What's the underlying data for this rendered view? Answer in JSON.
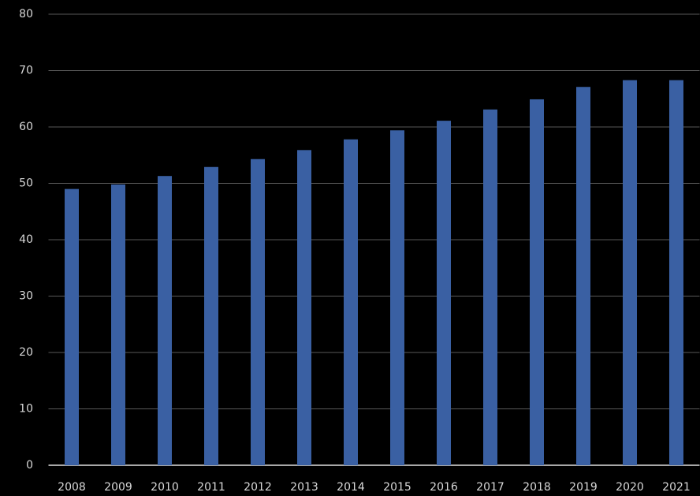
{
  "chart_data": {
    "type": "bar",
    "categories": [
      "2008",
      "2009",
      "2010",
      "2011",
      "2012",
      "2013",
      "2014",
      "2015",
      "2016",
      "2017",
      "2018",
      "2019",
      "2020",
      "2021"
    ],
    "values": [
      49,
      49.8,
      51.3,
      52.9,
      54.3,
      55.9,
      57.8,
      59.4,
      61.1,
      63.1,
      64.9,
      67.1,
      68.3,
      68.3
    ],
    "color": "#3a60a3",
    "ylim": [
      0,
      80
    ],
    "yticks": [
      0,
      10,
      20,
      30,
      40,
      50,
      60,
      70,
      80
    ],
    "grid": true
  }
}
